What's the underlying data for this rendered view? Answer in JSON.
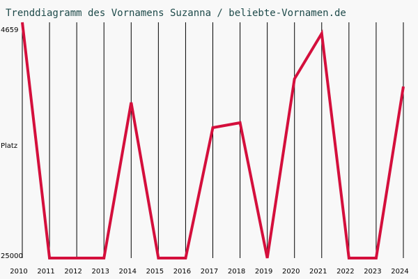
{
  "chart_data": {
    "type": "line",
    "title": "Trenddiagramm des Vornamens Suzanna / beliebte-Vornamen.de",
    "y_label": "Platz",
    "x": [
      2010,
      2011,
      2012,
      2013,
      2014,
      2015,
      2016,
      2017,
      2018,
      2019,
      2020,
      2021,
      2022,
      2023,
      2024
    ],
    "series": [
      {
        "name": "Suzanna",
        "color": "#d40f3c",
        "values": [
          4659,
          25000,
          25000,
          25000,
          11580,
          25000,
          25000,
          13746,
          13325,
          25000,
          9534,
          5622,
          25000,
          25000,
          10196
        ]
      }
    ],
    "xlim": [
      2010,
      2024
    ],
    "xticks": [
      2010,
      2011,
      2012,
      2013,
      2014,
      2015,
      2016,
      2017,
      2018,
      2019,
      2020,
      2021,
      2022,
      2023,
      2024
    ],
    "ylim": [
      25000,
      4659
    ],
    "yticks": [
      4659,
      25000
    ],
    "grid": true
  }
}
